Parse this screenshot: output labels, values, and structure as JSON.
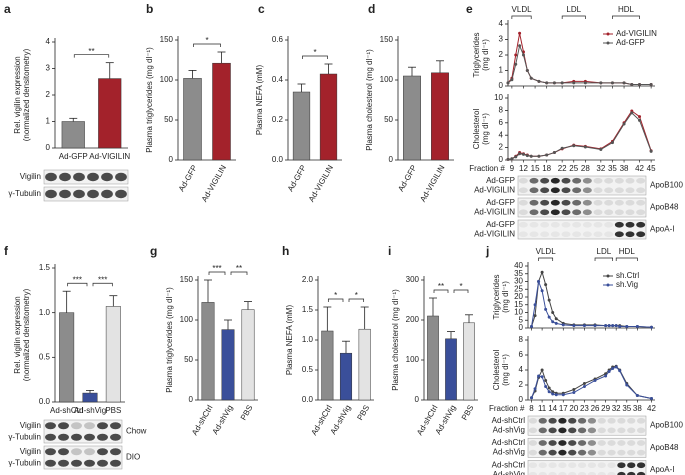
{
  "chart_data": [
    {
      "panel": "a",
      "type": "bar",
      "y_label": [
        "Rel. vigilin expression",
        "(normalized densitometry)"
      ],
      "categories": [
        "Ad-GFP",
        "Ad-VIGILIN"
      ],
      "values": [
        1.0,
        2.62
      ],
      "errors": [
        0.12,
        0.6
      ],
      "colors": [
        "#8c8c8c",
        "#a3222b"
      ],
      "ylim": [
        0,
        4
      ],
      "yticks": [
        0,
        1,
        2,
        3,
        4
      ],
      "significance": [
        "**"
      ],
      "blot": {
        "rows": [
          "Vigilin",
          "γ-Tubulin"
        ]
      }
    },
    {
      "panel": "b",
      "type": "bar",
      "y_label": [
        "Plasma triglycerides (mg dl⁻¹)"
      ],
      "categories": [
        "Ad-GFP",
        "Ad-VIGILIN"
      ],
      "values": [
        102,
        121
      ],
      "errors": [
        10,
        14
      ],
      "colors": [
        "#8c8c8c",
        "#a3222b"
      ],
      "ylim": [
        0,
        150
      ],
      "yticks": [
        0,
        50,
        100,
        150
      ],
      "significance": [
        "*"
      ]
    },
    {
      "panel": "c",
      "type": "bar",
      "y_label": [
        "Plasma NEFA (mM)"
      ],
      "categories": [
        "Ad-GFP",
        "Ad-VIGILIN"
      ],
      "values": [
        0.34,
        0.43
      ],
      "errors": [
        0.04,
        0.05
      ],
      "colors": [
        "#8c8c8c",
        "#a3222b"
      ],
      "ylim": [
        0,
        0.6
      ],
      "yticks": [
        {
          "value": 0,
          "label": "0.0"
        },
        0.2,
        0.4,
        0.6
      ],
      "significance": [
        "*"
      ]
    },
    {
      "panel": "d",
      "type": "bar",
      "y_label": [
        "Plasma cholesterol (mg dl⁻¹)"
      ],
      "categories": [
        "Ad-GFP",
        "Ad-VIGILIN"
      ],
      "values": [
        105,
        109
      ],
      "errors": [
        11,
        15
      ],
      "colors": [
        "#8c8c8c",
        "#a3222b"
      ],
      "ylim": [
        0,
        150
      ],
      "yticks": [
        0,
        50,
        100,
        150
      ]
    },
    {
      "panel": "e",
      "type": "line",
      "y_label": [
        "Triglycerides",
        "(mg dl⁻¹)"
      ],
      "x": [
        8,
        9,
        10,
        11,
        12,
        13,
        14,
        16,
        18,
        20,
        22,
        25,
        28,
        32,
        35,
        38,
        40,
        42,
        45
      ],
      "series": [
        {
          "name": "Ad-VIGILIN",
          "color": "#a3222b",
          "values": [
            0.2,
            0.5,
            2.0,
            3.4,
            2.2,
            1.0,
            0.5,
            0.3,
            0.2,
            0.2,
            0.2,
            0.3,
            0.3,
            0.2,
            0.2,
            0.2,
            0.1,
            0.1,
            0.1
          ]
        },
        {
          "name": "Ad-GFP",
          "color": "#555555",
          "values": [
            0.2,
            0.4,
            1.4,
            2.6,
            2.0,
            1.0,
            0.5,
            0.3,
            0.2,
            0.2,
            0.2,
            0.2,
            0.2,
            0.2,
            0.2,
            0.2,
            0.1,
            0.1,
            0.1
          ]
        }
      ],
      "xlim": [
        8,
        46
      ],
      "xticks": [
        9,
        12,
        15,
        18,
        22,
        25,
        28,
        32,
        35,
        38,
        42,
        45
      ],
      "ylim": [
        0,
        4
      ],
      "yticks": [
        0,
        1,
        2,
        3,
        4
      ],
      "legend": "upper right",
      "regions": [
        "VLDL",
        "LDL",
        "HDL"
      ]
    },
    {
      "type": "line",
      "y_label": [
        "Cholesterol",
        "(mg dl⁻¹)"
      ],
      "x_label": "Fraction #",
      "x": [
        8,
        9,
        10,
        11,
        12,
        13,
        14,
        16,
        18,
        20,
        22,
        25,
        28,
        32,
        35,
        38,
        40,
        42,
        45
      ],
      "series": [
        {
          "color": "#a3222b",
          "values": [
            0.1,
            0.2,
            0.6,
            1.2,
            1.0,
            0.8,
            0.6,
            0.6,
            0.8,
            1.2,
            1.8,
            2.4,
            2.2,
            1.8,
            3.0,
            6.0,
            7.9,
            7.0,
            1.5
          ]
        },
        {
          "color": "#555555",
          "values": [
            0.1,
            0.2,
            0.5,
            1.0,
            0.9,
            0.7,
            0.6,
            0.6,
            0.8,
            1.2,
            1.9,
            2.3,
            2.1,
            1.7,
            2.8,
            5.8,
            7.6,
            6.4,
            1.4
          ]
        }
      ],
      "xlim": [
        8,
        46
      ],
      "xticks": [
        9,
        12,
        15,
        18,
        22,
        25,
        28,
        32,
        35,
        38,
        42,
        45
      ],
      "ylim": [
        0,
        10
      ],
      "yticks": [
        0,
        2,
        4,
        6,
        8,
        10
      ],
      "blot": {
        "rows": [
          "Ad-GFP",
          "Ad-VIGILIN",
          "Ad-GFP",
          "Ad-VIGILIN",
          "Ad-GFP",
          "Ad-VIGILIN"
        ],
        "groups": [
          "ApoB100",
          "ApoB48",
          "ApoA-I"
        ]
      }
    },
    {
      "panel": "f",
      "type": "bar",
      "y_label": [
        "Rel. vigilin expression",
        "(normalized densitometry)"
      ],
      "categories": [
        "Ad-shCtrl",
        "Ad-shVig",
        "PBS"
      ],
      "values": [
        1.0,
        0.1,
        1.07
      ],
      "errors": [
        0.24,
        0.03,
        0.12
      ],
      "colors": [
        "#8c8c8c",
        "#3a4f9a",
        "#e3e3e3"
      ],
      "ylim": [
        0,
        1.5
      ],
      "yticks": [
        {
          "value": 0,
          "label": "0.0"
        },
        0.5,
        {
          "value": 1,
          "label": "1.0"
        },
        1.5
      ],
      "significance": [
        "***",
        "***"
      ],
      "blot": {
        "rows": [
          "Vigilin",
          "γ-Tubulin",
          "Vigilin",
          "γ-Tubulin"
        ],
        "groups": [
          "Chow",
          "DIO"
        ]
      }
    },
    {
      "panel": "g",
      "type": "bar",
      "y_label": [
        "Plasma triglycerides (mg dl⁻¹)"
      ],
      "categories": [
        "Ad-shCtrl",
        "Ad-shVig",
        "PBS"
      ],
      "values": [
        122,
        88,
        113
      ],
      "errors": [
        28,
        12,
        10
      ],
      "colors": [
        "#8c8c8c",
        "#3a4f9a",
        "#e3e3e3"
      ],
      "ylim": [
        0,
        150
      ],
      "yticks": [
        0,
        50,
        100,
        150
      ],
      "significance": [
        "***",
        "**"
      ]
    },
    {
      "panel": "h",
      "type": "bar",
      "y_label": [
        "Plasma NEFA (mM)"
      ],
      "categories": [
        "Ad-shCtrl",
        "Ad-shVig",
        "PBS"
      ],
      "values": [
        1.15,
        0.78,
        1.18
      ],
      "errors": [
        0.4,
        0.2,
        0.37
      ],
      "colors": [
        "#8c8c8c",
        "#3a4f9a",
        "#e3e3e3"
      ],
      "ylim": [
        0,
        2
      ],
      "yticks": [
        {
          "value": 0,
          "label": "0.0"
        },
        0.5,
        {
          "value": 1,
          "label": "1.0"
        },
        1.5,
        {
          "value": 2,
          "label": "2.0"
        }
      ],
      "significance": [
        "*",
        "*"
      ]
    },
    {
      "panel": "i",
      "type": "bar",
      "y_label": [
        "Plasma cholesterol (mg dl⁻¹)"
      ],
      "categories": [
        "Ad-shCtrl",
        "Ad-shVig",
        "PBS"
      ],
      "values": [
        210,
        153,
        193
      ],
      "errors": [
        45,
        18,
        20
      ],
      "colors": [
        "#8c8c8c",
        "#3a4f9a",
        "#e3e3e3"
      ],
      "ylim": [
        0,
        300
      ],
      "yticks": [
        0,
        100,
        200,
        300
      ],
      "significance": [
        "**",
        "*"
      ]
    },
    {
      "panel": "j",
      "type": "line",
      "y_label": [
        "Triglycerides",
        "(mg dl⁻¹)"
      ],
      "x": [
        8,
        9,
        10,
        11,
        12,
        13,
        14,
        15,
        17,
        20,
        23,
        26,
        29,
        30,
        31,
        32,
        33,
        35,
        38,
        42
      ],
      "series": [
        {
          "name": "sh.Ctrl",
          "color": "#444444",
          "values": [
            1,
            8,
            30,
            36,
            28,
            18,
            10,
            6,
            3,
            2,
            2,
            2,
            1.5,
            1.5,
            1.5,
            1.5,
            1.5,
            1,
            1,
            0.5
          ]
        },
        {
          "name": "sh.Vig",
          "color": "#3a4f9a",
          "values": [
            1,
            15,
            30,
            24,
            12,
            7,
            4,
            3,
            2,
            1.5,
            1.5,
            1.5,
            1.5,
            1.5,
            1.5,
            1.5,
            1,
            1,
            1,
            0.5
          ]
        }
      ],
      "xlim": [
        7,
        43
      ],
      "xticks": [
        8,
        11,
        14,
        17,
        20,
        23,
        26,
        29,
        32,
        35,
        38,
        42
      ],
      "ylim": [
        0,
        40
      ],
      "yticks": [
        0,
        5,
        10,
        15,
        20,
        25,
        30,
        35,
        40
      ],
      "legend": "upper right",
      "regions": [
        "VLDL",
        "LDL",
        "HDL"
      ]
    },
    {
      "type": "line",
      "y_label": [
        "Cholesterol",
        "(mg dl⁻¹)"
      ],
      "x_label": "Fraction #",
      "x": [
        8,
        9,
        10,
        11,
        12,
        13,
        14,
        15,
        17,
        20,
        23,
        26,
        29,
        30,
        31,
        32,
        33,
        35,
        38,
        42
      ],
      "series": [
        {
          "color": "#444444",
          "values": [
            0.3,
            1.2,
            3.0,
            4.0,
            2.6,
            1.6,
            1.1,
            0.9,
            0.9,
            1.4,
            2.2,
            2.8,
            3.5,
            4.0,
            4.4,
            4.5,
            4.0,
            2.2,
            0.6,
            0.2
          ]
        },
        {
          "color": "#3a4f9a",
          "values": [
            0.3,
            1.5,
            3.2,
            3.1,
            1.8,
            1.1,
            0.8,
            0.7,
            0.7,
            1.0,
            1.8,
            2.6,
            3.2,
            3.8,
            4.2,
            4.4,
            3.9,
            2.0,
            0.6,
            0.2
          ]
        }
      ],
      "xlim": [
        7,
        43
      ],
      "xticks": [
        8,
        11,
        14,
        17,
        20,
        23,
        26,
        29,
        32,
        35,
        38,
        42
      ],
      "ylim": [
        0,
        8
      ],
      "yticks": [
        0,
        2,
        4,
        6,
        8
      ],
      "blot": {
        "rows": [
          "Ad-shCtrl",
          "Ad-shVig",
          "Ad-shCtrl",
          "Ad-shVig",
          "Ad-shCtrl",
          "Ad-shVig"
        ],
        "groups": [
          "ApoB100",
          "ApoB48",
          "ApoA-I"
        ]
      }
    }
  ]
}
